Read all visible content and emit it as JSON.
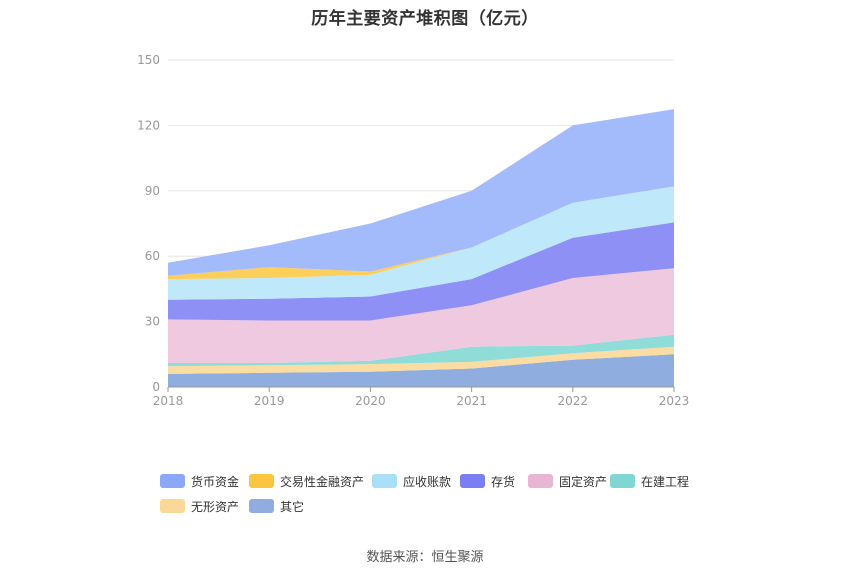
{
  "chart_data": {
    "type": "area",
    "stacked": true,
    "title": "历年主要资产堆积图（亿元）",
    "x": [
      "2018",
      "2019",
      "2020",
      "2021",
      "2022",
      "2023"
    ],
    "ylim": [
      0,
      150
    ],
    "yticks": [
      "0",
      "30",
      "60",
      "90",
      "120",
      "150"
    ],
    "grid": true,
    "legend_position": "bottom",
    "series": [
      {
        "name": "其它",
        "color": "#8fadde",
        "values": [
          6,
          6.5,
          7,
          8.5,
          12.5,
          15
        ]
      },
      {
        "name": "无形资产",
        "color": "#fbdca2",
        "values": [
          3.5,
          3.5,
          3.5,
          3,
          3,
          3.5
        ]
      },
      {
        "name": "在建工程",
        "color": "#8fdcd9",
        "values": [
          1.5,
          1,
          1.5,
          7,
          3.5,
          5.5
        ]
      },
      {
        "name": "固定资产",
        "color": "#efc9e0",
        "values": [
          20,
          19.5,
          18.5,
          19,
          31,
          30.5
        ]
      },
      {
        "name": "存货",
        "color": "#8e90f6",
        "values": [
          9,
          10,
          11,
          12,
          18.5,
          21
        ]
      },
      {
        "name": "应收账款",
        "color": "#bfe8fb",
        "values": [
          9.5,
          9.5,
          10,
          14.5,
          16,
          16.5
        ]
      },
      {
        "name": "交易性金融资产",
        "color": "#fcce5a",
        "values": [
          1.5,
          5,
          1.5,
          0,
          0,
          0
        ]
      },
      {
        "name": "货币资金",
        "color": "#a4bbfb",
        "values": [
          6,
          10,
          22,
          26,
          35.5,
          35.5
        ]
      }
    ]
  },
  "legend": [
    {
      "name": "货币资金",
      "color": "#8ba7f7"
    },
    {
      "name": "交易性金融资产",
      "color": "#fcc53f"
    },
    {
      "name": "应收账款",
      "color": "#a9dff7"
    },
    {
      "name": "存货",
      "color": "#7b7ef2"
    },
    {
      "name": "固定资产",
      "color": "#e8b6d4"
    },
    {
      "name": "在建工程",
      "color": "#7fd6d3"
    },
    {
      "name": "无形资产",
      "color": "#fcd898"
    },
    {
      "name": "其它",
      "color": "#8fadde"
    }
  ],
  "source": "数据来源：恒生聚源"
}
